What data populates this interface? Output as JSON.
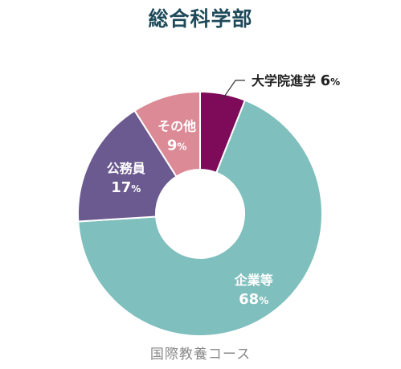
{
  "chart_data": {
    "type": "pie",
    "title": "総合科学部",
    "subtitle": "国際教養コース",
    "donut": true,
    "unit": "%",
    "slices": [
      {
        "label": "大学院進学",
        "value": 6,
        "color": "#7e0a5a",
        "label_color": "#222222",
        "callout": true
      },
      {
        "label": "企業等",
        "value": 68,
        "color": "#7fbfbd",
        "label_color": "#ffffff",
        "callout": false
      },
      {
        "label": "公務員",
        "value": 17,
        "color": "#6b5a8f",
        "label_color": "#ffffff",
        "callout": false
      },
      {
        "label": "その他",
        "value": 9,
        "color": "#db8a96",
        "label_color": "#ffffff",
        "callout": false
      }
    ]
  }
}
